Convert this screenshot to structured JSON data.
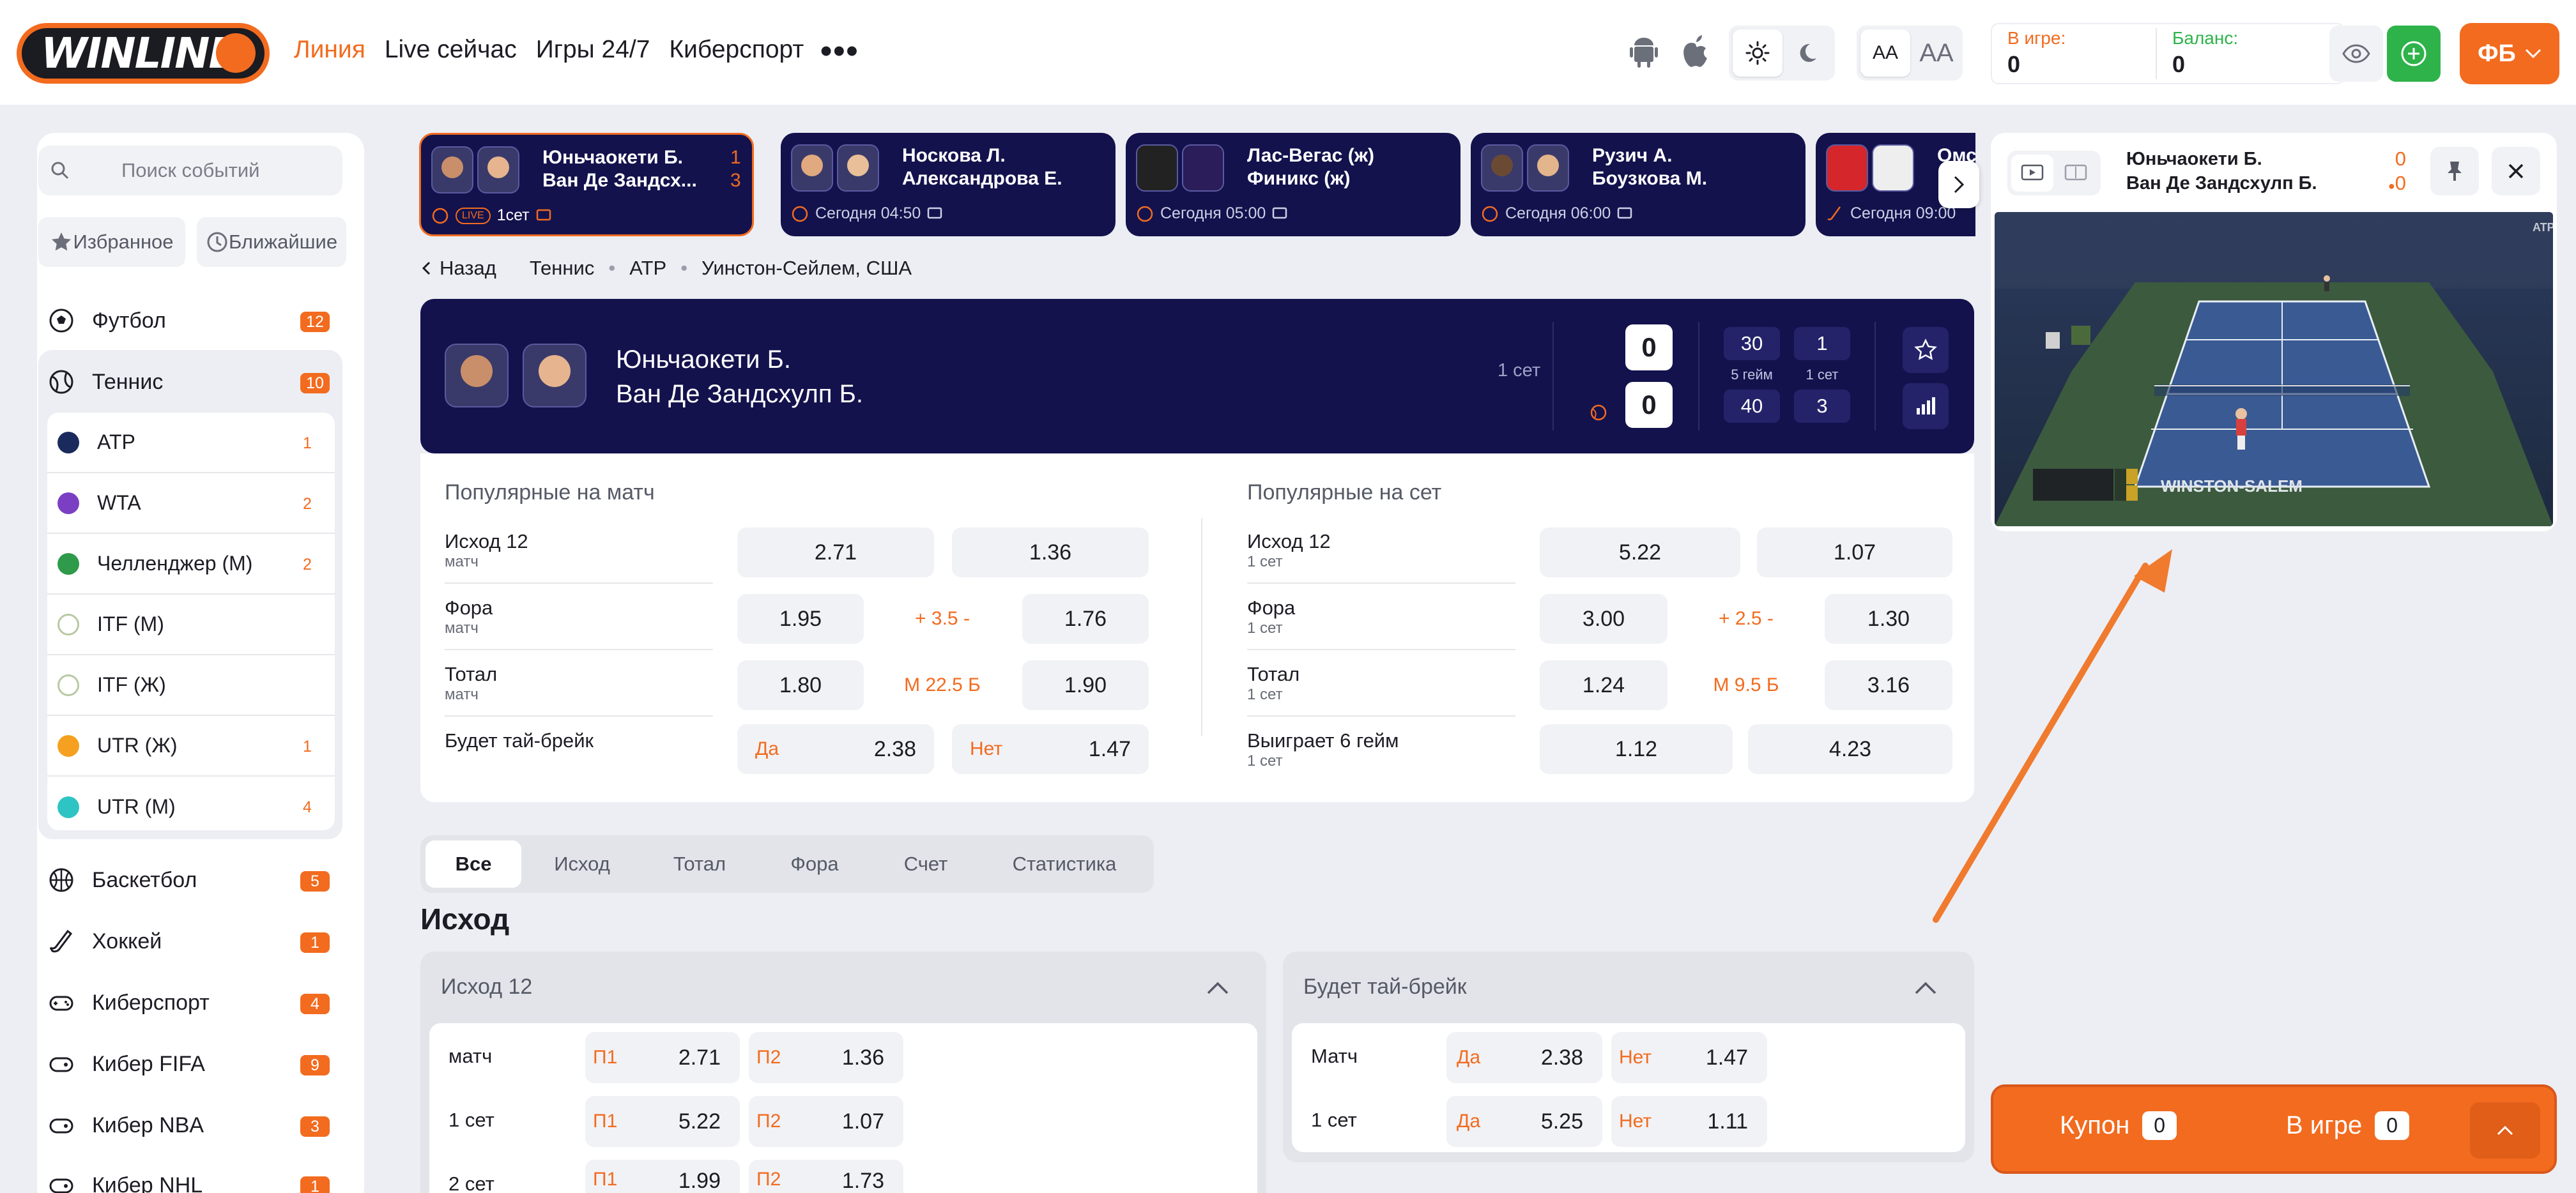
{
  "header": {
    "logo": "WINLINE",
    "nav": [
      "Линия",
      "Live сейчас",
      "Игры 24/7",
      "Киберспорт"
    ],
    "more": "•••",
    "font_small": "АА",
    "font_large": "АА",
    "in_game_label": "В игре:",
    "in_game_value": "0",
    "balance_label": "Баланс:",
    "balance_value": "0",
    "user": "ФБ"
  },
  "sidebar": {
    "search_placeholder": "Поиск событий",
    "favorites": "Избранное",
    "nearest": "Ближайшие",
    "sports": [
      {
        "name": "Футбол",
        "count": "12",
        "icon": "soccer-ball-icon"
      },
      {
        "name": "Теннис",
        "count": "10",
        "icon": "tennis-ball-icon"
      },
      {
        "name": "Баскетбол",
        "count": "5",
        "icon": "basketball-icon"
      },
      {
        "name": "Хоккей",
        "count": "1",
        "icon": "hockey-stick-icon"
      },
      {
        "name": "Киберспорт",
        "count": "4",
        "icon": "gamepad-icon"
      },
      {
        "name": "Кибер FIFA",
        "count": "9",
        "icon": "gamepad-icon"
      },
      {
        "name": "Кибер NBA",
        "count": "3",
        "icon": "gamepad-icon"
      },
      {
        "name": "Кибер NHL",
        "count": "1",
        "icon": "gamepad-icon"
      }
    ],
    "tennis_sub": [
      {
        "name": "ATP",
        "count": "1",
        "color": "#1b2a5c"
      },
      {
        "name": "WTA",
        "count": "2",
        "color": "#7b3fc4"
      },
      {
        "name": "Челленджер (М)",
        "count": "2",
        "color": "#2e9a4a"
      },
      {
        "name": "ITF (М)",
        "count": "",
        "color": "#b8c9a3"
      },
      {
        "name": "ITF (Ж)",
        "count": "",
        "color": "#b8c9a3"
      },
      {
        "name": "UTR (Ж)",
        "count": "1",
        "color": "#f5a020"
      },
      {
        "name": "UTR (М)",
        "count": "4",
        "color": "#2fc4c4"
      }
    ]
  },
  "events": [
    {
      "p1": "Юньчаокети Б.",
      "p2": "Ван Де Зандсх...",
      "s1": "1",
      "s2": "3",
      "time": "1сет",
      "live": "LIVE"
    },
    {
      "p1": "Носкова Л.",
      "p2": "Александрова Е.",
      "time": "Сегодня 04:50"
    },
    {
      "p1": "Лас-Вегас (ж)",
      "p2": "Финикс (ж)",
      "time": "Сегодня 05:00"
    },
    {
      "p1": "Рузич А.",
      "p2": "Боузкова М.",
      "time": "Сегодня 06:00"
    },
    {
      "p1": "Омс",
      "p2": "",
      "time": "Сегодня 09:00"
    }
  ],
  "breadcrumb": {
    "back": "Назад",
    "items": [
      "Теннис",
      "ATP",
      "Уинстон-Сейлем, США"
    ]
  },
  "match": {
    "p1": "Юньчаокети Б.",
    "p2": "Ван Де Зандсхулп Б.",
    "period": "1 сет",
    "score1": "0",
    "score2": "0",
    "game1": "30",
    "game2": "40",
    "game_label": "5 гейм",
    "set1": "1",
    "set2": "3",
    "set_label": "1 сет"
  },
  "popular_match": {
    "title": "Популярные на матч",
    "rows": [
      {
        "label": "Исход 12",
        "sub": "матч",
        "a": "2.71",
        "b": "1.36"
      },
      {
        "label": "Фора",
        "sub": "матч",
        "a": "1.95",
        "mid": "+ 3.5 -",
        "b": "1.76"
      },
      {
        "label": "Тотал",
        "sub": "матч",
        "a": "1.80",
        "mid": "М 22.5 Б",
        "b": "1.90"
      },
      {
        "label": "Будет тай-брейк",
        "sub": "",
        "al": "Да",
        "a": "2.38",
        "bl": "Нет",
        "b": "1.47"
      }
    ]
  },
  "popular_set": {
    "title": "Популярные на сет",
    "rows": [
      {
        "label": "Исход 12",
        "sub": "1 сет",
        "a": "5.22",
        "b": "1.07"
      },
      {
        "label": "Фора",
        "sub": "1 сет",
        "a": "3.00",
        "mid": "+ 2.5 -",
        "b": "1.30"
      },
      {
        "label": "Тотал",
        "sub": "1 сет",
        "a": "1.24",
        "mid": "М 9.5 Б",
        "b": "3.16"
      },
      {
        "label": "Выиграет 6 гейм",
        "sub": "1 сет",
        "a": "1.12",
        "b": "4.23"
      }
    ]
  },
  "tabs": [
    "Все",
    "Исход",
    "Тотал",
    "Фора",
    "Счет",
    "Статистика"
  ],
  "section_title": "Исход",
  "outcome12": {
    "title": "Исход 12",
    "rows": [
      {
        "label": "матч",
        "l1": "П1",
        "o1": "2.71",
        "l2": "П2",
        "o2": "1.36"
      },
      {
        "label": "1 сет",
        "l1": "П1",
        "o1": "5.22",
        "l2": "П2",
        "o2": "1.07"
      },
      {
        "label": "2 сет",
        "l1": "П1",
        "o1": "1.99",
        "l2": "П2",
        "o2": "1.73"
      }
    ]
  },
  "tiebreak": {
    "title": "Будет тай-брейк",
    "rows": [
      {
        "label": "Матч",
        "l1": "Да",
        "o1": "2.38",
        "l2": "Нет",
        "o2": "1.47"
      },
      {
        "label": "1 сет",
        "l1": "Да",
        "o1": "5.25",
        "l2": "Нет",
        "o2": "1.11"
      }
    ]
  },
  "video": {
    "p1": "Юньчаокети Б.",
    "p2": "Ван Де Зандсхулп Б.",
    "s1": "0",
    "s2": "0",
    "banner": "WINSTON-SALEM",
    "atp": "ATP"
  },
  "coupon": {
    "label": "Купон",
    "count": "0",
    "in_game": "В игре",
    "in_game_count": "0"
  },
  "colors": {
    "accent": "#f26b1f",
    "navy": "#13124d",
    "green": "#2db34a"
  }
}
